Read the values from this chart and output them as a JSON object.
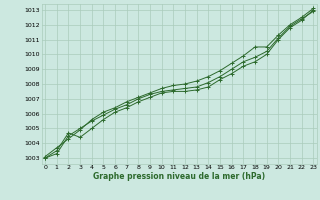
{
  "title": "Graphe pression niveau de la mer (hPa)",
  "bg_color": "#cce8e0",
  "grid_color": "#aaccbb",
  "line_color": "#2d6a2d",
  "x_ticks": [
    0,
    1,
    2,
    3,
    4,
    5,
    6,
    7,
    8,
    9,
    10,
    11,
    12,
    13,
    14,
    15,
    16,
    17,
    18,
    19,
    20,
    21,
    22,
    23
  ],
  "y_ticks": [
    1003,
    1004,
    1005,
    1006,
    1007,
    1008,
    1009,
    1010,
    1011,
    1012,
    1013
  ],
  "xlim": [
    -0.3,
    23.3
  ],
  "ylim": [
    1002.6,
    1013.4
  ],
  "series": [
    [
      1003.0,
      1003.5,
      1004.7,
      1004.4,
      1005.0,
      1005.6,
      1006.1,
      1006.4,
      1006.8,
      1007.1,
      1007.4,
      1007.5,
      1007.5,
      1007.6,
      1007.8,
      1008.3,
      1008.7,
      1009.2,
      1009.5,
      1010.0,
      1011.0,
      1011.8,
      1012.3,
      1013.0
    ],
    [
      1003.0,
      1003.3,
      1004.5,
      1005.0,
      1005.5,
      1005.9,
      1006.3,
      1006.6,
      1007.0,
      1007.3,
      1007.5,
      1007.6,
      1007.7,
      1007.8,
      1008.1,
      1008.5,
      1009.0,
      1009.5,
      1009.8,
      1010.2,
      1011.1,
      1011.9,
      1012.4,
      1012.9
    ],
    [
      1003.1,
      1003.7,
      1004.3,
      1004.9,
      1005.6,
      1006.1,
      1006.4,
      1006.8,
      1007.1,
      1007.4,
      1007.7,
      1007.9,
      1008.0,
      1008.2,
      1008.5,
      1008.9,
      1009.4,
      1009.9,
      1010.5,
      1010.5,
      1011.3,
      1012.0,
      1012.5,
      1013.1
    ]
  ]
}
